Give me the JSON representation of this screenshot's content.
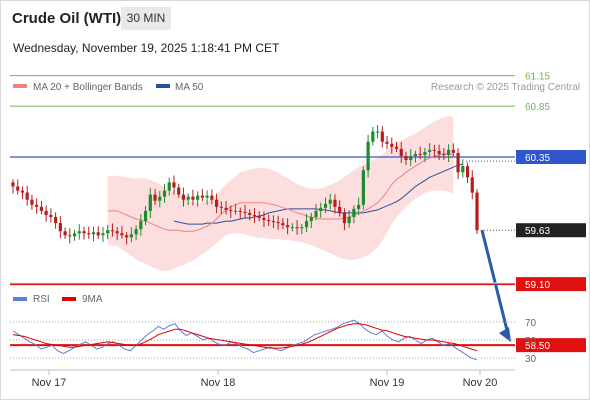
{
  "header": {
    "title": "Crude Oil (WTI)",
    "timeframe": "30 MIN",
    "datetime": "Wednesday, November 19, 2025 1:18:41 PM CET"
  },
  "legend": {
    "ma20_label": "MA 20 + Bollinger Bands",
    "ma50_label": "MA 50",
    "ma20_color": "#f08080",
    "ma50_color": "#2a4f9a",
    "credit": "Research © 2025 Trading Central"
  },
  "rsi_legend": {
    "rsi_label": "RSI",
    "ma9_label": "9MA",
    "rsi_color": "#5b7fd6",
    "ma9_color": "#e00000"
  },
  "colors": {
    "up": "#1f8a2e",
    "down": "#b81d1d",
    "band": "#fbd3d3",
    "support": "#e01010",
    "resistance_green": "#6fb650",
    "resistance_blue": "#2f55c8",
    "arrow": "#2a5aa8"
  },
  "chart_data": [
    {
      "type": "candlestick",
      "title": "",
      "x_ticks": [
        "Nov 17",
        "Nov 18",
        "Nov 19",
        "Nov 20"
      ],
      "levels": [
        {
          "value": 61.15,
          "label": "61.15",
          "kind": "resistance"
        },
        {
          "value": 60.85,
          "label": "60.85",
          "kind": "resistance"
        },
        {
          "value": 60.35,
          "label": "60.35",
          "kind": "pivot"
        },
        {
          "value": 59.63,
          "label": "59.63",
          "kind": "last"
        },
        {
          "value": 59.1,
          "label": "59.10",
          "kind": "support"
        },
        {
          "value": 58.5,
          "label": "58.50",
          "kind": "support"
        }
      ],
      "ylim": [
        58.5,
        61.4
      ],
      "close": [
        60.06,
        60.02,
        60.0,
        59.93,
        59.88,
        59.86,
        59.82,
        59.78,
        59.76,
        59.7,
        59.62,
        59.58,
        59.57,
        59.6,
        59.62,
        59.6,
        59.59,
        59.61,
        59.58,
        59.6,
        59.63,
        59.62,
        59.6,
        59.58,
        59.56,
        59.59,
        59.64,
        59.72,
        59.82,
        59.98,
        59.92,
        59.96,
        60.02,
        60.1,
        60.05,
        59.98,
        59.93,
        59.96,
        59.93,
        59.97,
        59.95,
        59.97,
        59.93,
        59.86,
        59.85,
        59.83,
        59.82,
        59.82,
        59.81,
        59.8,
        59.78,
        59.77,
        59.75,
        59.73,
        59.72,
        59.71,
        59.7,
        59.68,
        59.66,
        59.66,
        59.65,
        59.66,
        59.72,
        59.76,
        59.82,
        59.85,
        59.89,
        59.93,
        59.86,
        59.8,
        59.7,
        59.76,
        59.84,
        59.88,
        60.22,
        60.5,
        60.6,
        60.6,
        60.5,
        60.48,
        60.45,
        60.43,
        60.36,
        60.32,
        60.36,
        60.38,
        60.37,
        60.4,
        60.42,
        60.41,
        60.38,
        60.37,
        60.42,
        60.39,
        60.2,
        60.26,
        60.15,
        60.0,
        59.63
      ],
      "ma20": [
        59.82,
        59.82,
        59.82,
        59.8,
        59.78,
        59.76,
        59.74,
        59.73,
        59.72,
        59.7,
        59.68,
        59.66,
        59.64,
        59.63,
        59.63,
        59.63,
        59.62,
        59.62,
        59.62,
        59.63,
        59.65,
        59.67,
        59.7,
        59.74,
        59.79,
        59.83,
        59.86,
        59.88,
        59.9,
        59.9,
        59.9,
        59.9,
        59.9,
        59.9,
        59.89,
        59.88,
        59.87,
        59.85,
        59.84,
        59.82,
        59.8,
        59.79,
        59.77,
        59.76,
        59.75,
        59.74,
        59.74,
        59.74,
        59.74,
        59.74,
        59.75,
        59.76,
        59.78,
        59.8,
        59.82,
        59.84,
        59.87,
        59.9,
        59.95,
        60.01,
        60.08,
        60.13,
        60.16,
        60.2,
        60.23,
        60.26,
        60.29,
        60.32,
        60.34,
        60.36,
        60.37,
        60.38,
        60.38,
        60.37
      ],
      "ma50": [
        59.72,
        59.71,
        59.7,
        59.69,
        59.69,
        59.69,
        59.69,
        59.7,
        59.7,
        59.7,
        59.71,
        59.72,
        59.72,
        59.73,
        59.74,
        59.75,
        59.75,
        59.76,
        59.77,
        59.78,
        59.8,
        59.81,
        59.82,
        59.83,
        59.84,
        59.84,
        59.84,
        59.84,
        59.84,
        59.84,
        59.84,
        59.83,
        59.83,
        59.82,
        59.81,
        59.8,
        59.8,
        59.8,
        59.8,
        59.8,
        59.8,
        59.81,
        59.82,
        59.83,
        59.85,
        59.87,
        59.89,
        59.91,
        59.94,
        59.98,
        60.02,
        60.06,
        60.09,
        60.12,
        60.15,
        60.17,
        60.19,
        60.21,
        60.23,
        60.25,
        60.27,
        60.28
      ]
    },
    {
      "type": "line",
      "title": "",
      "series": [
        {
          "name": "RSI",
          "values": [
            60,
            56,
            52,
            48,
            45,
            40,
            42,
            44,
            38,
            35,
            38,
            42,
            45,
            48,
            44,
            40,
            42,
            46,
            48,
            44,
            40,
            38,
            44,
            50,
            56,
            60,
            65,
            62,
            66,
            68,
            60,
            55,
            58,
            54,
            50,
            52,
            48,
            45,
            44,
            48,
            46,
            42,
            40,
            36,
            38,
            40,
            42,
            40,
            38,
            41,
            44,
            46,
            48,
            52,
            56,
            58,
            60,
            62,
            64,
            68,
            70,
            72,
            68,
            62,
            58,
            56,
            60,
            54,
            50,
            48,
            52,
            54,
            50,
            46,
            50,
            52,
            48,
            44,
            46,
            42,
            38,
            34,
            30,
            28
          ]
        },
        {
          "name": "9MA",
          "values": [
            56,
            55,
            54,
            52,
            50,
            48,
            46,
            45,
            44,
            43,
            42,
            42,
            43,
            44,
            45,
            46,
            47,
            48,
            47,
            46,
            45,
            44,
            44,
            46,
            49,
            52,
            56,
            58,
            60,
            62,
            62,
            60,
            58,
            56,
            54,
            52,
            51,
            50,
            49,
            48,
            47,
            46,
            45,
            44,
            43,
            42,
            41,
            41,
            41,
            42,
            43,
            44,
            46,
            48,
            51,
            54,
            57,
            60,
            63,
            65,
            67,
            68,
            68,
            67,
            65,
            63,
            61,
            60,
            58,
            56,
            54,
            53,
            52,
            51,
            50,
            50,
            49,
            48,
            47,
            46,
            44,
            42,
            40,
            38
          ]
        }
      ],
      "y_ticks": [
        "70",
        "50",
        "30"
      ],
      "ylim": [
        25,
        75
      ]
    }
  ]
}
